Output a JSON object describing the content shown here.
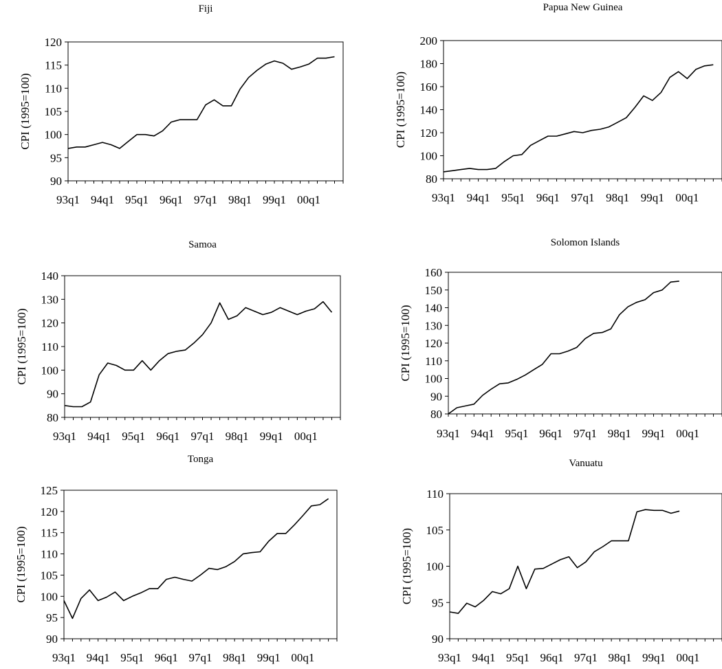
{
  "chart_data": [
    {
      "type": "line",
      "title": "Fiji",
      "ylabel": "CPI (1995=100)",
      "ylim": [
        90,
        120
      ],
      "yticks": [
        90,
        95,
        100,
        105,
        110,
        115,
        120
      ],
      "xtick_labels": [
        "93q1",
        "94q1",
        "95q1",
        "96q1",
        "97q1",
        "98q1",
        "99q1",
        "00q1"
      ],
      "x": [
        "93q1",
        "93q2",
        "93q3",
        "93q4",
        "94q1",
        "94q2",
        "94q3",
        "94q4",
        "95q1",
        "95q2",
        "95q3",
        "95q4",
        "96q1",
        "96q2",
        "96q3",
        "96q4",
        "97q1",
        "97q2",
        "97q3",
        "97q4",
        "98q1",
        "98q2",
        "98q3",
        "98q4",
        "99q1",
        "99q2",
        "99q3",
        "99q4",
        "00q1",
        "00q2",
        "00q3",
        "00q4"
      ],
      "series": [
        {
          "values": [
            97.0,
            97.3,
            97.3,
            97.8,
            98.3,
            97.8,
            97.0,
            98.5,
            100.0,
            100.0,
            99.7,
            100.8,
            102.7,
            103.2,
            103.2,
            103.2,
            106.4,
            107.5,
            106.2,
            106.2,
            109.8,
            112.3,
            113.9,
            115.2,
            115.9,
            115.4,
            114.1,
            114.6,
            115.2,
            116.5,
            116.5,
            116.8
          ]
        }
      ]
    },
    {
      "type": "line",
      "title": "Papua New Guinea",
      "ylabel": "CPI (1995=100)",
      "ylim": [
        80,
        200
      ],
      "yticks": [
        80,
        100,
        120,
        140,
        160,
        180,
        200
      ],
      "xtick_labels": [
        "93q1",
        "94q1",
        "95q1",
        "96q1",
        "97q1",
        "98q1",
        "99q1",
        "00q1"
      ],
      "x": [
        "93q1",
        "93q2",
        "93q3",
        "93q4",
        "94q1",
        "94q2",
        "94q3",
        "94q4",
        "95q1",
        "95q2",
        "95q3",
        "95q4",
        "96q1",
        "96q2",
        "96q3",
        "96q4",
        "97q1",
        "97q2",
        "97q3",
        "97q4",
        "98q1",
        "98q2",
        "98q3",
        "98q4",
        "99q1",
        "99q2",
        "99q3",
        "99q4",
        "00q1",
        "00q2",
        "00q3",
        "00q4"
      ],
      "series": [
        {
          "values": [
            86,
            87,
            88,
            89,
            88,
            88,
            89,
            95,
            100,
            101,
            109,
            113,
            117,
            117,
            119,
            121,
            120,
            122,
            123,
            125,
            129,
            133,
            142,
            152,
            148,
            155,
            168,
            173,
            167,
            175,
            178,
            179
          ]
        }
      ]
    },
    {
      "type": "line",
      "title": "Samoa",
      "ylabel": "CPI (1995=100)",
      "ylim": [
        80,
        140
      ],
      "yticks": [
        80,
        90,
        100,
        110,
        120,
        130,
        140
      ],
      "xtick_labels": [
        "93q1",
        "94q1",
        "95q1",
        "96q1",
        "97q1",
        "98q1",
        "99q1",
        "00q1"
      ],
      "x": [
        "93q1",
        "93q2",
        "93q3",
        "93q4",
        "94q1",
        "94q2",
        "94q3",
        "94q4",
        "95q1",
        "95q2",
        "95q3",
        "95q4",
        "96q1",
        "96q2",
        "96q3",
        "96q4",
        "97q1",
        "97q2",
        "97q3",
        "97q4",
        "98q1",
        "98q2",
        "98q3",
        "98q4",
        "99q1",
        "99q2",
        "99q3",
        "99q4",
        "00q1",
        "00q2",
        "00q3",
        "00q4"
      ],
      "series": [
        {
          "values": [
            85,
            84.5,
            84.5,
            86.5,
            98,
            103,
            102,
            100,
            100,
            104,
            100,
            104,
            107,
            108,
            108.5,
            111.5,
            115,
            120,
            128.5,
            121.5,
            123,
            126.5,
            125,
            123.5,
            124.5,
            126.5,
            125,
            123.5,
            125,
            126,
            129,
            124.5
          ]
        }
      ]
    },
    {
      "type": "line",
      "title": "Solomon Islands",
      "ylabel": "CPI (1995=100)",
      "ylim": [
        80,
        160
      ],
      "yticks": [
        80,
        90,
        100,
        110,
        120,
        130,
        140,
        150,
        160
      ],
      "xtick_labels": [
        "93q1",
        "94q1",
        "95q1",
        "96q1",
        "97q1",
        "98q1",
        "99q1",
        "00q1"
      ],
      "x": [
        "93q1",
        "93q2",
        "93q3",
        "93q4",
        "94q1",
        "94q2",
        "94q3",
        "94q4",
        "95q1",
        "95q2",
        "95q3",
        "95q4",
        "96q1",
        "96q2",
        "96q3",
        "96q4",
        "97q1",
        "97q2",
        "97q3",
        "97q4",
        "98q1",
        "98q2",
        "98q3",
        "98q4",
        "99q1",
        "99q2",
        "99q3",
        "99q4"
      ],
      "series": [
        {
          "values": [
            80,
            83.5,
            84.5,
            85.5,
            90.5,
            94,
            97,
            97.5,
            99.5,
            102,
            105,
            108,
            114,
            114,
            115.5,
            117.5,
            122.5,
            125.5,
            126,
            128,
            136,
            140.5,
            143,
            144.5,
            148.5,
            150,
            154.5,
            155
          ]
        }
      ]
    },
    {
      "type": "line",
      "title": "Tonga",
      "ylabel": "CPI (1995=100)",
      "ylim": [
        90,
        125
      ],
      "yticks": [
        90,
        95,
        100,
        105,
        110,
        115,
        120,
        125
      ],
      "xtick_labels": [
        "93q1",
        "94q1",
        "95q1",
        "96q1",
        "97q1",
        "98q1",
        "99q1",
        "00q1"
      ],
      "x": [
        "93q1",
        "93q2",
        "93q3",
        "93q4",
        "94q1",
        "94q2",
        "94q3",
        "94q4",
        "95q1",
        "95q2",
        "95q3",
        "95q4",
        "96q1",
        "96q2",
        "96q3",
        "96q4",
        "97q1",
        "97q2",
        "97q3",
        "97q4",
        "98q1",
        "98q2",
        "98q3",
        "98q4",
        "99q1",
        "99q2",
        "99q3",
        "99q4",
        "00q1",
        "00q2",
        "00q3",
        "00q4"
      ],
      "series": [
        {
          "values": [
            99,
            94.8,
            99.5,
            101.5,
            99,
            99.8,
            101,
            99,
            100,
            100.8,
            101.8,
            101.8,
            104,
            104.5,
            104,
            103.6,
            105,
            106.6,
            106.3,
            107,
            108.2,
            110,
            110.3,
            110.5,
            113,
            114.8,
            114.8,
            116.8,
            119,
            121.3,
            121.6,
            123
          ]
        }
      ]
    },
    {
      "type": "line",
      "title": "Vanuatu",
      "ylabel": "CPI (1995=100)",
      "ylim": [
        90,
        110
      ],
      "yticks": [
        90,
        95,
        100,
        105,
        110
      ],
      "xtick_labels": [
        "93q1",
        "94q1",
        "95q1",
        "96q1",
        "97q1",
        "98q1",
        "99q1",
        "00q1"
      ],
      "x": [
        "93q1",
        "93q2",
        "93q3",
        "93q4",
        "94q1",
        "94q2",
        "94q3",
        "94q4",
        "95q1",
        "95q2",
        "95q3",
        "95q4",
        "96q1",
        "96q2",
        "96q3",
        "96q4",
        "97q1",
        "97q2",
        "97q3",
        "97q4",
        "98q1",
        "98q2",
        "98q3",
        "98q4",
        "99q1",
        "99q2",
        "99q3",
        "99q4"
      ],
      "series": [
        {
          "values": [
            93.7,
            93.5,
            94.9,
            94.4,
            95.3,
            96.5,
            96.2,
            96.9,
            100,
            96.9,
            99.6,
            99.7,
            100.3,
            100.9,
            101.3,
            99.8,
            100.6,
            102,
            102.7,
            103.5,
            103.5,
            103.5,
            107.5,
            107.8,
            107.7,
            107.7,
            107.3,
            107.6
          ]
        }
      ]
    }
  ]
}
